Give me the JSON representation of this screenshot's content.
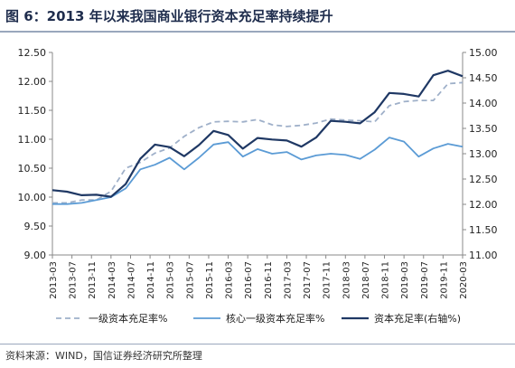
{
  "header": {
    "title": "图 6：2013 年以来我国商业银行资本充足率持续提升"
  },
  "footer": {
    "source": "资料来源：WIND，国信证券经济研究所整理"
  },
  "chart_data": {
    "type": "line",
    "categories": [
      "2013-03",
      "2013-07",
      "2013-11",
      "2014-03",
      "2014-07",
      "2014-11",
      "2015-03",
      "2015-07",
      "2015-11",
      "2016-03",
      "2016-07",
      "2016-11",
      "2017-03",
      "2017-07",
      "2017-11",
      "2018-03",
      "2018-07",
      "2018-11",
      "2019-03",
      "2019-07",
      "2019-11",
      "2020-03"
    ],
    "x": [
      "2013-03",
      "2013-06",
      "2013-09",
      "2013-12",
      "2014-03",
      "2014-06",
      "2014-09",
      "2014-12",
      "2015-03",
      "2015-06",
      "2015-09",
      "2015-12",
      "2016-03",
      "2016-06",
      "2016-09",
      "2016-12",
      "2017-03",
      "2017-06",
      "2017-09",
      "2017-12",
      "2018-03",
      "2018-06",
      "2018-09",
      "2018-12",
      "2019-03",
      "2019-06",
      "2019-09",
      "2019-12",
      "2020-03"
    ],
    "series": [
      {
        "name": "一级资本充足率%",
        "axis": "left",
        "color": "#9fb0c9",
        "dash": true,
        "values": [
          9.9,
          9.9,
          9.95,
          9.95,
          10.1,
          10.5,
          10.6,
          10.76,
          10.85,
          11.05,
          11.2,
          11.3,
          11.31,
          11.3,
          11.34,
          11.25,
          11.22,
          11.24,
          11.28,
          11.35,
          11.33,
          11.32,
          11.3,
          11.58,
          11.65,
          11.67,
          11.67,
          11.96,
          11.98
        ]
      },
      {
        "name": "核心一级资本充足率%",
        "axis": "left",
        "color": "#5b9bd5",
        "dash": false,
        "values": [
          9.88,
          9.88,
          9.9,
          9.95,
          10.0,
          10.15,
          10.48,
          10.56,
          10.68,
          10.48,
          10.68,
          10.91,
          10.95,
          10.7,
          10.83,
          10.75,
          10.78,
          10.65,
          10.72,
          10.75,
          10.73,
          10.66,
          10.82,
          11.03,
          10.96,
          10.7,
          10.84,
          10.92,
          10.87
        ]
      },
      {
        "name": "资本充足率(右轴%)",
        "axis": "right",
        "color": "#1f3864",
        "dash": false,
        "values": [
          12.28,
          12.25,
          12.18,
          12.19,
          12.15,
          12.4,
          12.9,
          13.18,
          13.13,
          12.95,
          13.17,
          13.45,
          13.37,
          13.1,
          13.31,
          13.28,
          13.26,
          13.14,
          13.32,
          13.65,
          13.63,
          13.6,
          13.82,
          14.2,
          14.18,
          14.13,
          14.55,
          14.64,
          14.53
        ]
      }
    ],
    "yaxis_left": {
      "min": 9.0,
      "max": 12.5,
      "ticks": [
        "9.00",
        "9.50",
        "10.00",
        "10.50",
        "11.00",
        "11.50",
        "12.00",
        "12.50"
      ]
    },
    "yaxis_right": {
      "min": 11.0,
      "max": 15.0,
      "ticks": [
        "11.00",
        "11.50",
        "12.00",
        "12.50",
        "13.00",
        "13.50",
        "14.00",
        "14.50",
        "15.00"
      ]
    },
    "legend_position": "bottom",
    "grid": false
  }
}
